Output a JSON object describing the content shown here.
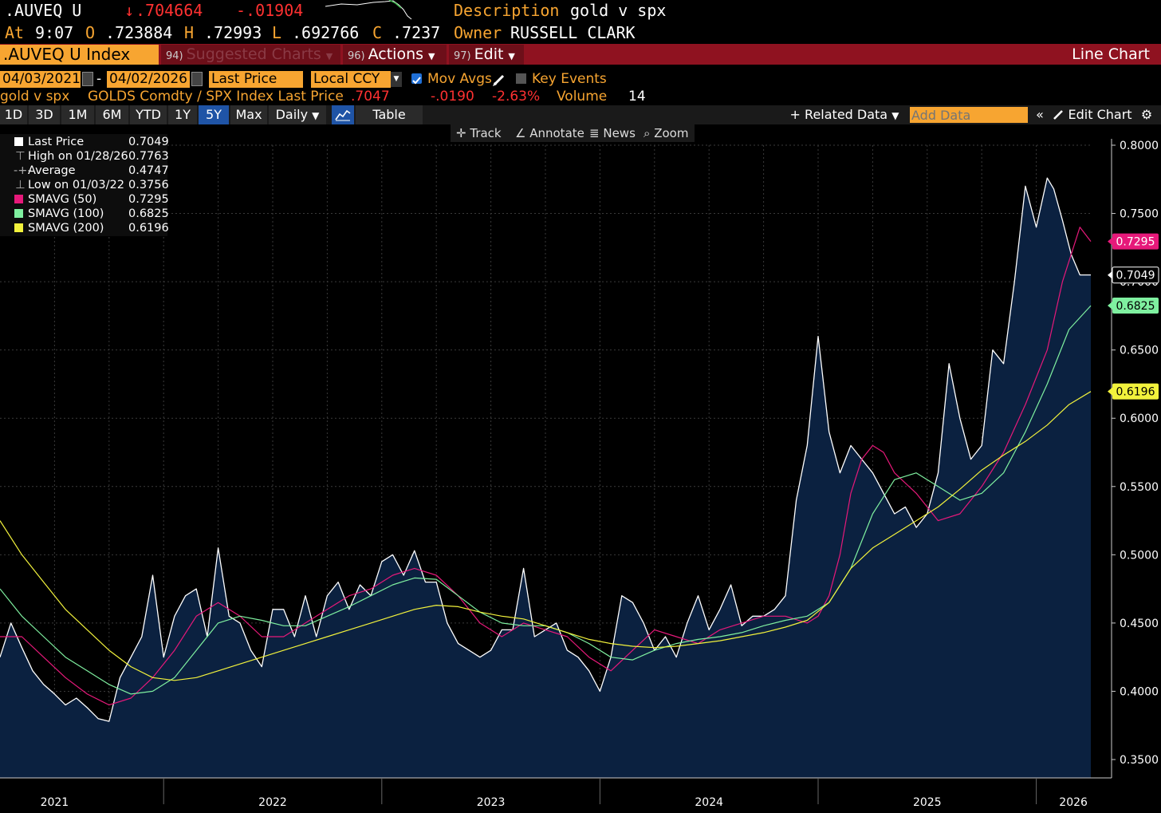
{
  "header": {
    "ticker": ".AUVEQ U",
    "arrow": "↓",
    "last": ".704664",
    "change": "-.01904",
    "description_label": "Description",
    "description": "gold v spx",
    "at_label": "At",
    "time": "9:07",
    "open_label": "O",
    "open": ".723884",
    "high_label": "H",
    "high": ".72993",
    "low_label": "L",
    "low": ".692766",
    "close_label": "C",
    "close": ".7237",
    "owner_label": "Owner",
    "owner": "RUSSELL CLARK"
  },
  "menubar": {
    "security": ".AUVEQ U Index",
    "items": [
      {
        "num": "94)",
        "label": "Suggested Charts"
      },
      {
        "num": "96)",
        "label": "Actions"
      },
      {
        "num": "97)",
        "label": "Edit"
      }
    ],
    "chart_type": "Line Chart"
  },
  "controls": {
    "start_date": "04/03/2021",
    "date_sep": "-",
    "end_date": "04/02/2026",
    "field": "Last Price",
    "currency": "Local CCY",
    "mov_avgs": "Mov Avgs",
    "key_events": "Key Events"
  },
  "series_line": {
    "name": "gold v spx",
    "formula": "GOLDS Comdty / SPX Index Last Price",
    "value": ".7047",
    "change": "-.0190",
    "pct": "-2.63%",
    "volume_label": "Volume",
    "volume": "14"
  },
  "toolbar": {
    "periods": [
      "1D",
      "3D",
      "1M",
      "6M",
      "YTD",
      "1Y",
      "5Y",
      "Max"
    ],
    "active": "5Y",
    "frequency": "Daily",
    "table": "Table",
    "related_data": "Related Data",
    "add_data_placeholder": "Add Data",
    "edit_chart": "Edit Chart"
  },
  "chart_tools": [
    "Track",
    "Annotate",
    "News",
    "Zoom"
  ],
  "legend": [
    {
      "label": "Last Price",
      "value": "0.7049",
      "color": "#ffffff"
    },
    {
      "label": "High on 01/28/26",
      "value": "0.7763",
      "color": "#aaaaaa"
    },
    {
      "label": "Average",
      "value": "0.4747",
      "color": "#aaaaaa"
    },
    {
      "label": "Low on 01/03/22",
      "value": "0.3756",
      "color": "#aaaaaa"
    },
    {
      "label": "SMAVG (50)",
      "value": "0.7295",
      "color": "#e6197a"
    },
    {
      "label": "SMAVG (100)",
      "value": "0.6825",
      "color": "#7ff0a0"
    },
    {
      "label": "SMAVG (200)",
      "value": "0.6196",
      "color": "#f2f23c"
    }
  ],
  "chart_data": {
    "type": "line",
    "ylim": [
      0.35,
      0.8
    ],
    "yticks": [
      "0.3500",
      "0.4000",
      "0.4500",
      "0.5000",
      "0.5500",
      "0.6000",
      "0.6500",
      "0.7000",
      "0.7500",
      "0.8000"
    ],
    "xlabels": [
      {
        "label": "2021",
        "t": 2021.5
      },
      {
        "label": "2022",
        "t": 2022.5
      },
      {
        "label": "2023",
        "t": 2023.5
      },
      {
        "label": "2024",
        "t": 2024.5
      },
      {
        "label": "2025",
        "t": 2025.5
      },
      {
        "label": "2026",
        "t": 2026.17
      }
    ],
    "xlim": [
      2021.25,
      2026.25
    ],
    "series": [
      {
        "name": "Last Price",
        "color": "#ffffff",
        "x": [
          2021.25,
          2021.3,
          2021.35,
          2021.4,
          2021.45,
          2021.5,
          2021.55,
          2021.6,
          2021.65,
          2021.7,
          2021.75,
          2021.8,
          2021.85,
          2021.9,
          2021.95,
          2022.0,
          2022.05,
          2022.1,
          2022.15,
          2022.2,
          2022.25,
          2022.3,
          2022.35,
          2022.4,
          2022.45,
          2022.5,
          2022.55,
          2022.6,
          2022.65,
          2022.7,
          2022.75,
          2022.8,
          2022.85,
          2022.9,
          2022.95,
          2023.0,
          2023.05,
          2023.1,
          2023.15,
          2023.2,
          2023.25,
          2023.3,
          2023.35,
          2023.4,
          2023.45,
          2023.5,
          2023.55,
          2023.6,
          2023.65,
          2023.7,
          2023.75,
          2023.8,
          2023.85,
          2023.9,
          2023.95,
          2024.0,
          2024.05,
          2024.1,
          2024.15,
          2024.2,
          2024.25,
          2024.3,
          2024.35,
          2024.4,
          2024.45,
          2024.5,
          2024.55,
          2024.6,
          2024.65,
          2024.7,
          2024.75,
          2024.8,
          2024.85,
          2024.9,
          2024.95,
          2025.0,
          2025.05,
          2025.1,
          2025.15,
          2025.2,
          2025.25,
          2025.3,
          2025.35,
          2025.4,
          2025.45,
          2025.5,
          2025.55,
          2025.6,
          2025.65,
          2025.7,
          2025.75,
          2025.8,
          2025.85,
          2025.9,
          2025.95,
          2026.0,
          2026.05,
          2026.08,
          2026.12,
          2026.16,
          2026.2,
          2026.25
        ],
        "y": [
          0.425,
          0.45,
          0.432,
          0.415,
          0.405,
          0.398,
          0.39,
          0.395,
          0.388,
          0.38,
          0.378,
          0.41,
          0.425,
          0.44,
          0.485,
          0.425,
          0.455,
          0.47,
          0.475,
          0.44,
          0.505,
          0.455,
          0.45,
          0.43,
          0.418,
          0.46,
          0.46,
          0.44,
          0.47,
          0.44,
          0.47,
          0.48,
          0.46,
          0.478,
          0.47,
          0.495,
          0.5,
          0.485,
          0.503,
          0.48,
          0.48,
          0.45,
          0.435,
          0.43,
          0.425,
          0.43,
          0.445,
          0.445,
          0.49,
          0.44,
          0.445,
          0.45,
          0.43,
          0.425,
          0.415,
          0.4,
          0.425,
          0.47,
          0.465,
          0.45,
          0.43,
          0.44,
          0.425,
          0.45,
          0.47,
          0.445,
          0.46,
          0.478,
          0.448,
          0.455,
          0.455,
          0.46,
          0.47,
          0.54,
          0.58,
          0.66,
          0.59,
          0.56,
          0.58,
          0.57,
          0.56,
          0.545,
          0.53,
          0.535,
          0.52,
          0.53,
          0.56,
          0.64,
          0.6,
          0.57,
          0.58,
          0.65,
          0.64,
          0.7,
          0.77,
          0.74,
          0.776,
          0.768,
          0.745,
          0.72,
          0.705,
          0.705
        ]
      },
      {
        "name": "SMAVG (50)",
        "color": "#e6197a",
        "x": [
          2021.25,
          2021.35,
          2021.45,
          2021.55,
          2021.65,
          2021.75,
          2021.85,
          2021.95,
          2022.05,
          2022.15,
          2022.25,
          2022.35,
          2022.45,
          2022.55,
          2022.65,
          2022.75,
          2022.85,
          2022.95,
          2023.05,
          2023.15,
          2023.25,
          2023.35,
          2023.45,
          2023.55,
          2023.65,
          2023.75,
          2023.85,
          2023.95,
          2024.05,
          2024.15,
          2024.25,
          2024.35,
          2024.45,
          2024.55,
          2024.65,
          2024.75,
          2024.85,
          2024.95,
          2025.0,
          2025.05,
          2025.1,
          2025.15,
          2025.2,
          2025.25,
          2025.3,
          2025.35,
          2025.45,
          2025.55,
          2025.65,
          2025.75,
          2025.85,
          2025.95,
          2026.05,
          2026.12,
          2026.2,
          2026.25
        ],
        "y": [
          0.44,
          0.44,
          0.425,
          0.41,
          0.398,
          0.39,
          0.395,
          0.41,
          0.43,
          0.455,
          0.465,
          0.455,
          0.44,
          0.44,
          0.45,
          0.46,
          0.47,
          0.475,
          0.485,
          0.49,
          0.485,
          0.47,
          0.45,
          0.44,
          0.45,
          0.445,
          0.44,
          0.425,
          0.415,
          0.43,
          0.445,
          0.44,
          0.435,
          0.445,
          0.45,
          0.455,
          0.455,
          0.45,
          0.455,
          0.47,
          0.5,
          0.545,
          0.57,
          0.58,
          0.575,
          0.56,
          0.545,
          0.525,
          0.53,
          0.55,
          0.575,
          0.61,
          0.65,
          0.7,
          0.74,
          0.7295
        ]
      },
      {
        "name": "SMAVG (100)",
        "color": "#7ff0a0",
        "x": [
          2021.25,
          2021.35,
          2021.45,
          2021.55,
          2021.65,
          2021.75,
          2021.85,
          2021.95,
          2022.05,
          2022.15,
          2022.25,
          2022.35,
          2022.45,
          2022.55,
          2022.65,
          2022.75,
          2022.85,
          2022.95,
          2023.05,
          2023.15,
          2023.25,
          2023.35,
          2023.45,
          2023.55,
          2023.65,
          2023.75,
          2023.85,
          2023.95,
          2024.05,
          2024.15,
          2024.25,
          2024.35,
          2024.45,
          2024.55,
          2024.65,
          2024.75,
          2024.85,
          2024.95,
          2025.05,
          2025.15,
          2025.25,
          2025.35,
          2025.45,
          2025.55,
          2025.65,
          2025.75,
          2025.85,
          2025.95,
          2026.05,
          2026.15,
          2026.25
        ],
        "y": [
          0.475,
          0.455,
          0.44,
          0.425,
          0.415,
          0.405,
          0.398,
          0.4,
          0.41,
          0.43,
          0.45,
          0.455,
          0.452,
          0.448,
          0.448,
          0.455,
          0.462,
          0.47,
          0.478,
          0.483,
          0.482,
          0.47,
          0.458,
          0.45,
          0.448,
          0.448,
          0.443,
          0.435,
          0.425,
          0.423,
          0.43,
          0.435,
          0.438,
          0.44,
          0.443,
          0.448,
          0.452,
          0.455,
          0.465,
          0.49,
          0.53,
          0.555,
          0.56,
          0.55,
          0.54,
          0.545,
          0.56,
          0.59,
          0.625,
          0.665,
          0.6825
        ]
      },
      {
        "name": "SMAVG (200)",
        "color": "#f2f23c",
        "x": [
          2021.25,
          2021.35,
          2021.45,
          2021.55,
          2021.65,
          2021.75,
          2021.85,
          2021.95,
          2022.05,
          2022.15,
          2022.25,
          2022.35,
          2022.45,
          2022.55,
          2022.65,
          2022.75,
          2022.85,
          2022.95,
          2023.05,
          2023.15,
          2023.25,
          2023.35,
          2023.45,
          2023.55,
          2023.65,
          2023.75,
          2023.85,
          2023.95,
          2024.05,
          2024.15,
          2024.25,
          2024.35,
          2024.45,
          2024.55,
          2024.65,
          2024.75,
          2024.85,
          2024.95,
          2025.05,
          2025.15,
          2025.25,
          2025.35,
          2025.45,
          2025.55,
          2025.65,
          2025.75,
          2025.85,
          2025.95,
          2026.05,
          2026.15,
          2026.25
        ],
        "y": [
          0.525,
          0.5,
          0.48,
          0.46,
          0.445,
          0.43,
          0.418,
          0.41,
          0.408,
          0.41,
          0.415,
          0.42,
          0.425,
          0.43,
          0.435,
          0.44,
          0.445,
          0.45,
          0.455,
          0.46,
          0.463,
          0.462,
          0.458,
          0.455,
          0.453,
          0.448,
          0.443,
          0.438,
          0.435,
          0.433,
          0.432,
          0.433,
          0.435,
          0.437,
          0.44,
          0.443,
          0.447,
          0.452,
          0.465,
          0.49,
          0.505,
          0.515,
          0.525,
          0.535,
          0.548,
          0.562,
          0.573,
          0.583,
          0.595,
          0.61,
          0.6196
        ]
      }
    ],
    "value_tags": [
      {
        "label": "0.7295",
        "value": 0.7295,
        "color": "#e6197a"
      },
      {
        "label": "0.7049",
        "value": 0.7049,
        "color": "#ffffff"
      },
      {
        "label": "0.6825",
        "value": 0.6825,
        "color": "#7ff0a0"
      },
      {
        "label": "0.6196",
        "value": 0.6196,
        "color": "#f2f23c"
      }
    ]
  }
}
